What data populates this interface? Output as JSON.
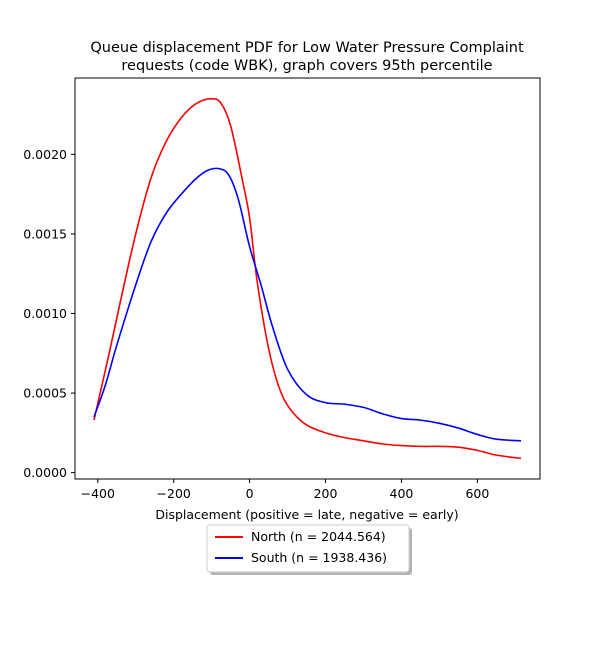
{
  "chart_data": {
    "type": "line",
    "title_lines": [
      "Queue displacement PDF for Low Water Pressure Complaint",
      "requests (code WBK), graph covers 95th percentile"
    ],
    "xlabel": "Displacement (positive = late, negative = early)",
    "ylabel": "",
    "xlim": [
      -460,
      765
    ],
    "ylim": [
      -4e-05,
      0.00248
    ],
    "x_ticks": [
      -400,
      -200,
      0,
      200,
      400,
      600
    ],
    "x_tick_labels": [
      "−400",
      "−200",
      "0",
      "200",
      "400",
      "600"
    ],
    "y_ticks": [
      0.0,
      0.0005,
      0.001,
      0.0015,
      0.002
    ],
    "y_tick_labels": [
      "0.0000",
      "0.0005",
      "0.0010",
      "0.0015",
      "0.0020"
    ],
    "grid": false,
    "legend_position": "below-center",
    "series": [
      {
        "name": "North (n = 2044.564)",
        "color": "#ff0000",
        "x": [
          -410,
          -370,
          -340,
          -300,
          -260,
          -220,
          -180,
          -140,
          -100,
          -75,
          -50,
          -20,
          0,
          20,
          50,
          80,
          110,
          150,
          200,
          250,
          300,
          350,
          400,
          450,
          500,
          550,
          600,
          650,
          715
        ],
        "y": [
          0.00033,
          0.00075,
          0.00108,
          0.0015,
          0.00185,
          0.00208,
          0.00223,
          0.00232,
          0.00235,
          0.00232,
          0.00218,
          0.00185,
          0.0016,
          0.0012,
          0.00078,
          0.00052,
          0.00039,
          0.0003,
          0.00025,
          0.00022,
          0.0002,
          0.00018,
          0.00017,
          0.000165,
          0.000165,
          0.00016,
          0.00014,
          0.00011,
          9e-05
        ]
      },
      {
        "name": "South (n = 1938.436)",
        "color": "#0000ff",
        "x": [
          -410,
          -380,
          -350,
          -300,
          -260,
          -220,
          -180,
          -140,
          -110,
          -80,
          -55,
          -30,
          0,
          30,
          60,
          100,
          150,
          200,
          250,
          300,
          350,
          400,
          450,
          500,
          550,
          600,
          650,
          715
        ],
        "y": [
          0.00035,
          0.00055,
          0.0008,
          0.00118,
          0.00145,
          0.00163,
          0.00175,
          0.00185,
          0.0019,
          0.00191,
          0.00187,
          0.00172,
          0.00142,
          0.00118,
          0.00092,
          0.00065,
          0.00049,
          0.00044,
          0.00043,
          0.00041,
          0.00037,
          0.00034,
          0.00033,
          0.00031,
          0.00028,
          0.00024,
          0.00021,
          0.0002
        ]
      }
    ]
  }
}
